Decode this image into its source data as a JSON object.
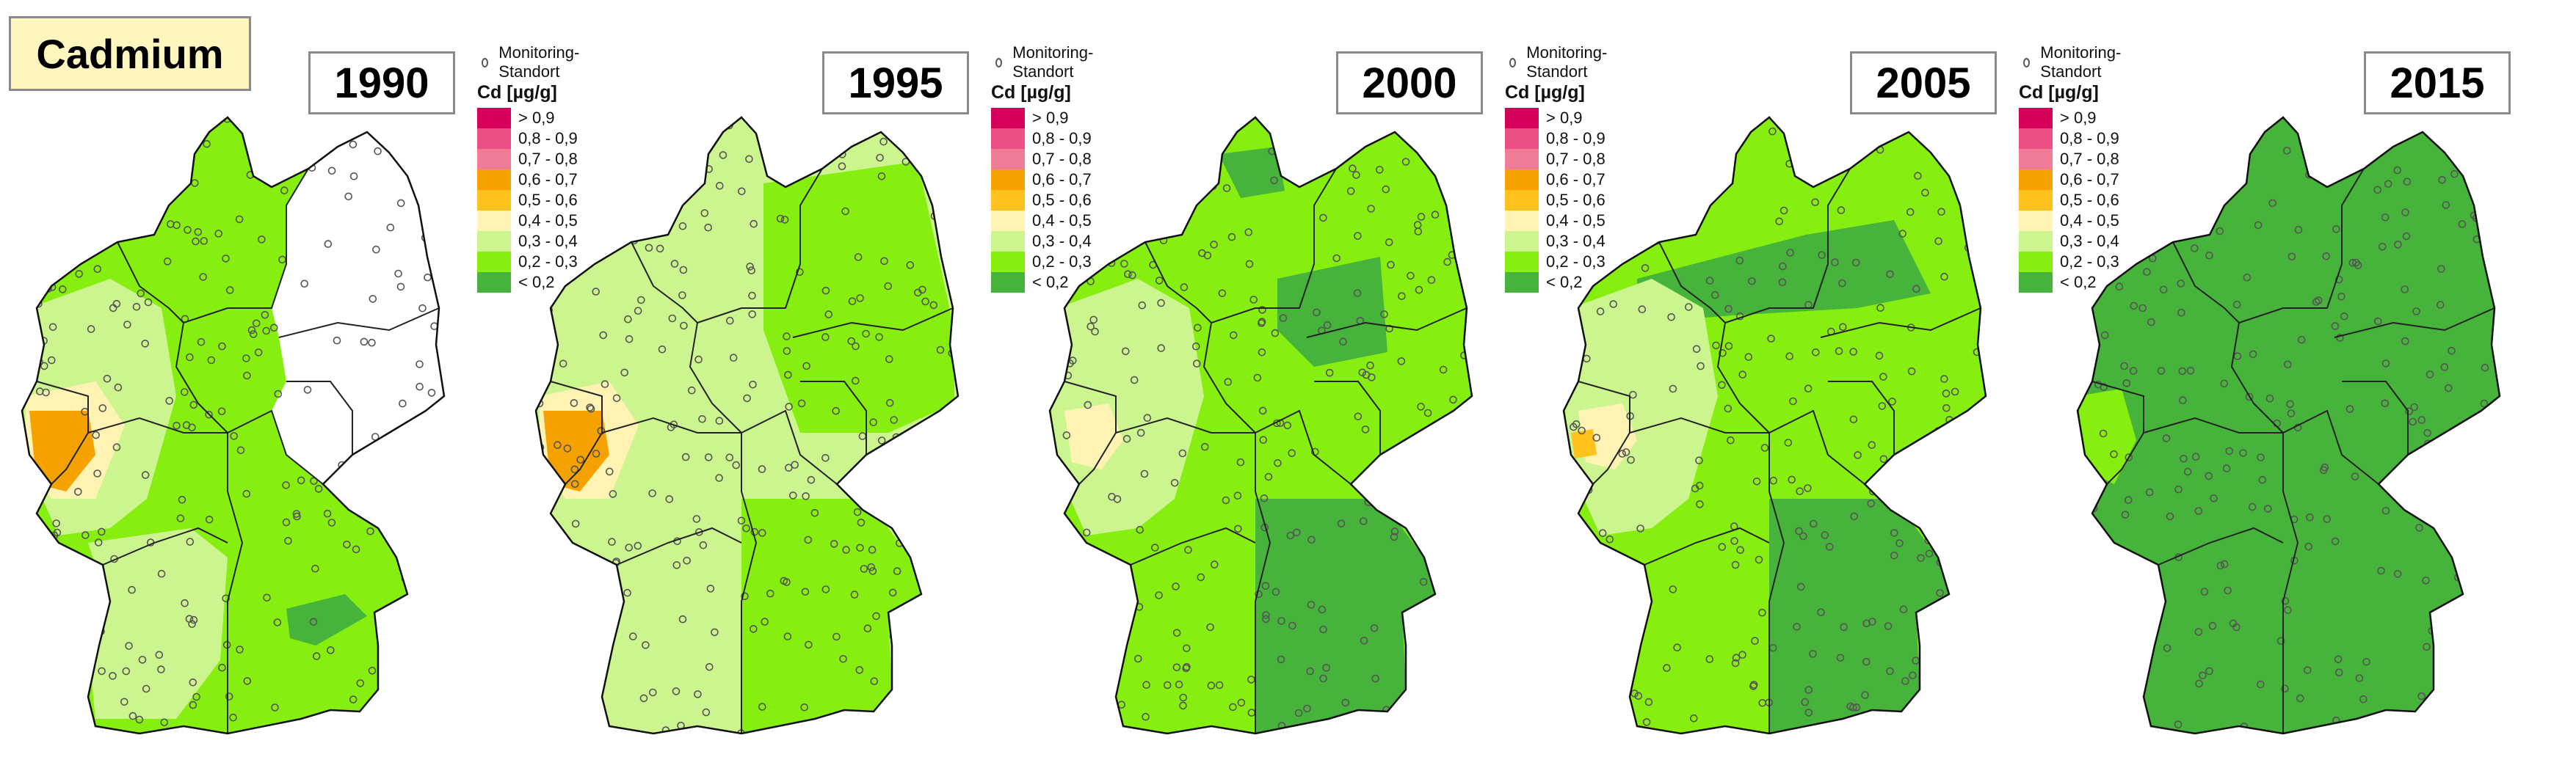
{
  "title": "Cadmium",
  "legend": {
    "monitoring_label": "Monitoring-Standort",
    "unit_label": "Cd [µg/g]",
    "classes": [
      {
        "label": "> 0,9",
        "color": "#d6005a"
      },
      {
        "label": "0,8 - 0,9",
        "color": "#ec4f86"
      },
      {
        "label": "0,7 - 0,8",
        "color": "#f07d95"
      },
      {
        "label": "0,6 - 0,7",
        "color": "#f5a200"
      },
      {
        "label": "0,5 - 0,6",
        "color": "#ffc21c"
      },
      {
        "label": "0,4 - 0,5",
        "color": "#fff3b3"
      },
      {
        "label": "0,3 - 0,4",
        "color": "#ccf58f"
      },
      {
        "label": "0,2 - 0,3",
        "color": "#86ef10"
      },
      {
        "label": "< 0,2",
        "color": "#46b33a"
      }
    ]
  },
  "panels": [
    {
      "year": "1990",
      "has_legend": true,
      "base_class": "0,2 - 0,3",
      "eastern_no_data": true,
      "patches": [
        {
          "class": "0,3 - 0,4",
          "region": "west"
        },
        {
          "class": "0,3 - 0,4",
          "region": "southwest"
        },
        {
          "class": "0,4 - 0,5",
          "region": "rhine"
        },
        {
          "class": "0,6 - 0,7",
          "region": "rhine-core"
        },
        {
          "class": "< 0,2",
          "region": "bavaria-east"
        }
      ]
    },
    {
      "year": "1995",
      "has_legend": true,
      "base_class": "0,3 - 0,4",
      "eastern_no_data": false,
      "patches": [
        {
          "class": "0,2 - 0,3",
          "region": "east"
        },
        {
          "class": "0,2 - 0,3",
          "region": "south"
        },
        {
          "class": "0,4 - 0,5",
          "region": "rhine"
        },
        {
          "class": "0,6 - 0,7",
          "region": "rhine-core"
        }
      ]
    },
    {
      "year": "2000",
      "has_legend": true,
      "base_class": "0,2 - 0,3",
      "eastern_no_data": false,
      "patches": [
        {
          "class": "< 0,2",
          "region": "south"
        },
        {
          "class": "< 0,2",
          "region": "center-east"
        },
        {
          "class": "< 0,2",
          "region": "north-coast"
        },
        {
          "class": "0,3 - 0,4",
          "region": "west"
        },
        {
          "class": "0,4 - 0,5",
          "region": "rhine-small"
        }
      ]
    },
    {
      "year": "2005",
      "has_legend": true,
      "base_class": "0,2 - 0,3",
      "eastern_no_data": false,
      "patches": [
        {
          "class": "< 0,2",
          "region": "south"
        },
        {
          "class": "< 0,2",
          "region": "north-band"
        },
        {
          "class": "0,3 - 0,4",
          "region": "west"
        },
        {
          "class": "0,4 - 0,5",
          "region": "rhine-small"
        },
        {
          "class": "0,5 - 0,6",
          "region": "rhine-dot"
        }
      ]
    },
    {
      "year": "2015",
      "has_legend": false,
      "base_class": "< 0,2",
      "eastern_no_data": false,
      "patches": [
        {
          "class": "0,2 - 0,3",
          "region": "west-edge"
        }
      ]
    }
  ]
}
